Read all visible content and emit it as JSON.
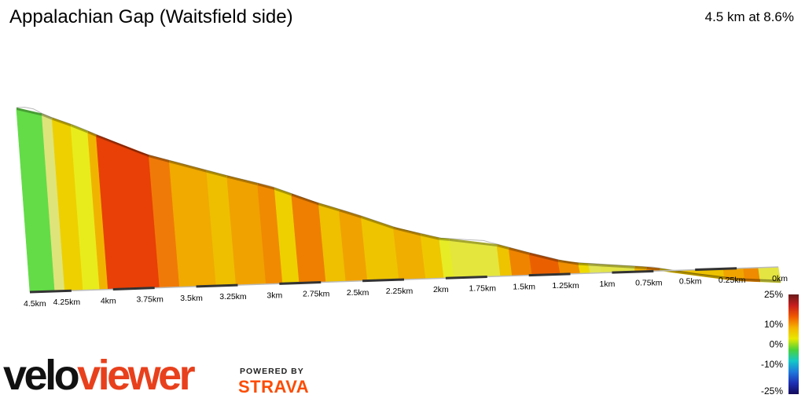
{
  "chart_data": {
    "type": "area",
    "title": "Appalachian Gap (Waitsfield side)",
    "summary": "4.5 km at 8.6%",
    "distance_unit": "km",
    "x_ticks": [
      "4.5km",
      "4.25km",
      "4km",
      "3.75km",
      "3.5km",
      "3.25km",
      "3km",
      "2.75km",
      "2.5km",
      "2.25km",
      "2km",
      "1.75km",
      "1.5km",
      "1.25km",
      "1km",
      "0.75km",
      "0.5km",
      "0.25km",
      "0km"
    ],
    "xlim": [
      4.5,
      0
    ],
    "elevation_ylim": [
      0,
      245
    ],
    "profile": [
      {
        "x": 4.5,
        "elev": 240
      },
      {
        "x": 4.42,
        "elev": 240
      },
      {
        "x": 4.33,
        "elev": 229
      },
      {
        "x": 4.16,
        "elev": 215
      },
      {
        "x": 3.78,
        "elev": 178
      },
      {
        "x": 3.5,
        "elev": 160
      },
      {
        "x": 3.25,
        "elev": 144
      },
      {
        "x": 3.0,
        "elev": 129
      },
      {
        "x": 2.75,
        "elev": 108
      },
      {
        "x": 2.5,
        "elev": 90
      },
      {
        "x": 2.25,
        "elev": 70
      },
      {
        "x": 2.0,
        "elev": 56
      },
      {
        "x": 1.75,
        "elev": 51
      },
      {
        "x": 1.5,
        "elev": 35
      },
      {
        "x": 1.25,
        "elev": 20
      },
      {
        "x": 1.0,
        "elev": 15
      },
      {
        "x": 0.75,
        "elev": 10
      },
      {
        "x": 0.5,
        "elev": 0
      },
      {
        "x": 0.25,
        "elev": -8
      },
      {
        "x": 0.0,
        "elev": -12
      }
    ],
    "segments": [
      {
        "from": 4.5,
        "to": 4.35,
        "color": "#63dc47"
      },
      {
        "from": 4.35,
        "to": 4.29,
        "color": "#dfe47a"
      },
      {
        "from": 4.29,
        "to": 4.18,
        "color": "#eed000"
      },
      {
        "from": 4.18,
        "to": 4.08,
        "color": "#e8ec1c"
      },
      {
        "from": 4.08,
        "to": 4.03,
        "color": "#f0b400"
      },
      {
        "from": 4.03,
        "to": 3.72,
        "color": "#e84006"
      },
      {
        "from": 3.72,
        "to": 3.6,
        "color": "#f07a08"
      },
      {
        "from": 3.6,
        "to": 3.38,
        "color": "#f0aa00"
      },
      {
        "from": 3.38,
        "to": 3.26,
        "color": "#eebf00"
      },
      {
        "from": 3.26,
        "to": 3.08,
        "color": "#f0a200"
      },
      {
        "from": 3.08,
        "to": 2.98,
        "color": "#f08a00"
      },
      {
        "from": 2.98,
        "to": 2.88,
        "color": "#eed000"
      },
      {
        "from": 2.88,
        "to": 2.72,
        "color": "#ee7f00"
      },
      {
        "from": 2.72,
        "to": 2.6,
        "color": "#eec000"
      },
      {
        "from": 2.6,
        "to": 2.47,
        "color": "#f0a200"
      },
      {
        "from": 2.47,
        "to": 2.28,
        "color": "#eec400"
      },
      {
        "from": 2.28,
        "to": 2.12,
        "color": "#f0ae00"
      },
      {
        "from": 2.12,
        "to": 2.01,
        "color": "#eec700"
      },
      {
        "from": 2.01,
        "to": 1.95,
        "color": "#e6ec26"
      },
      {
        "from": 1.95,
        "to": 1.67,
        "color": "#e4e63e"
      },
      {
        "from": 1.67,
        "to": 1.6,
        "color": "#eec300"
      },
      {
        "from": 1.6,
        "to": 1.48,
        "color": "#ef8400"
      },
      {
        "from": 1.48,
        "to": 1.31,
        "color": "#ea6000"
      },
      {
        "from": 1.31,
        "to": 1.19,
        "color": "#f08f00"
      },
      {
        "from": 1.19,
        "to": 1.13,
        "color": "#eeda00"
      },
      {
        "from": 1.13,
        "to": 1.06,
        "color": "#e2e454"
      },
      {
        "from": 1.06,
        "to": 0.86,
        "color": "#e2e448"
      },
      {
        "from": 0.86,
        "to": 0.79,
        "color": "#f0b200"
      },
      {
        "from": 0.79,
        "to": 0.71,
        "color": "#ee8400"
      },
      {
        "from": 0.71,
        "to": 0.65,
        "color": "#eed200"
      },
      {
        "from": 0.65,
        "to": 0.33,
        "color": "#eec200"
      },
      {
        "from": 0.33,
        "to": 0.21,
        "color": "#f0a400"
      },
      {
        "from": 0.21,
        "to": 0.12,
        "color": "#ef8b00"
      },
      {
        "from": 0.12,
        "to": 0.0,
        "color": "#e4e442"
      }
    ],
    "legend": {
      "labels": [
        "25%",
        "10%",
        "0%",
        "-10%",
        "-25%"
      ],
      "values": [
        25,
        10,
        0,
        -10,
        -25
      ],
      "gradient": [
        "#6a1a1a",
        "#c81e1e",
        "#f05a00",
        "#f5b400",
        "#e8e800",
        "#4ad23a",
        "#14c8c8",
        "#1e78dc",
        "#1e2fb4",
        "#140a5a"
      ]
    }
  },
  "branding": {
    "velo": "velo",
    "viewer": "viewer",
    "powered_by": "POWERED BY",
    "strava": "STRAVA"
  }
}
